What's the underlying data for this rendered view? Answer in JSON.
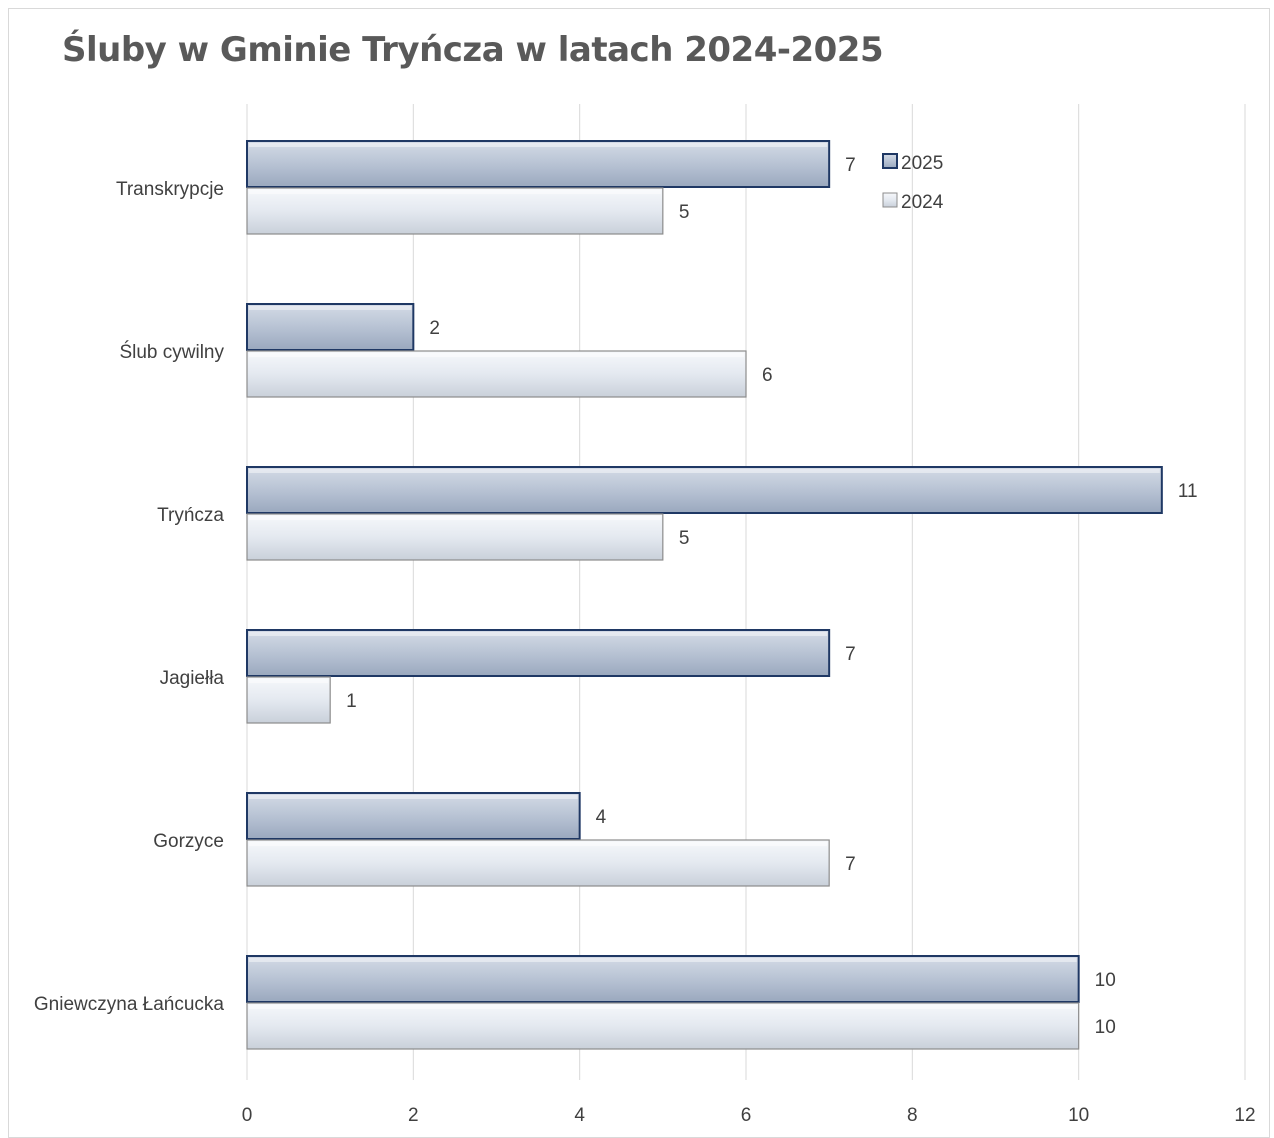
{
  "chart_data": {
    "type": "bar",
    "orientation": "horizontal",
    "title": "Śluby w Gminie Tryńcza w latach 2024-2025",
    "categories": [
      "Transkrypcje",
      "Ślub cywilny",
      "Tryńcza",
      "Jagiełła",
      "Gorzyce",
      "Gniewczyna Łańcucka"
    ],
    "series": [
      {
        "name": "2025",
        "values": [
          7,
          2,
          11,
          7,
          4,
          10
        ],
        "color": "#b8c3d4",
        "border": "#1f3864"
      },
      {
        "name": "2024",
        "values": [
          5,
          6,
          5,
          1,
          7,
          10
        ],
        "color": "#e4e9f0",
        "border": "#8c8c8c"
      }
    ],
    "xlim": [
      0,
      12
    ],
    "x_ticks": [
      "0",
      "2",
      "4",
      "6",
      "8",
      "10",
      "12"
    ],
    "grid": true,
    "legend": "top-right",
    "xlabel": "",
    "ylabel": ""
  }
}
